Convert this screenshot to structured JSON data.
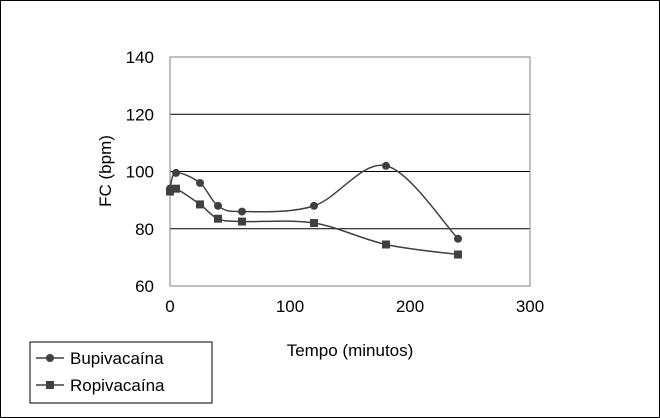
{
  "chart_data": {
    "type": "line",
    "title": "",
    "xlabel": "Tempo (minutos)",
    "ylabel": "FC (bpm)",
    "xlim": [
      0,
      300
    ],
    "ylim": [
      60,
      140
    ],
    "x_ticks": [
      "0",
      "100",
      "200",
      "300"
    ],
    "y_ticks": [
      "60",
      "80",
      "100",
      "120",
      "140"
    ],
    "grid": "horizontal",
    "legend_position": "bottom-left",
    "series": [
      {
        "name": "Bupivacaína",
        "marker": "circle",
        "color": "#404040",
        "x": [
          0,
          5,
          25,
          40,
          60,
          120,
          180,
          240
        ],
        "y": [
          94,
          99.5,
          96,
          88,
          86,
          88,
          102,
          76.5
        ]
      },
      {
        "name": "Ropivacaína",
        "marker": "square",
        "color": "#404040",
        "x": [
          0,
          5,
          25,
          40,
          60,
          120,
          180,
          240
        ],
        "y": [
          93,
          94,
          88.5,
          83.5,
          82.5,
          82,
          74.5,
          71
        ]
      }
    ]
  }
}
